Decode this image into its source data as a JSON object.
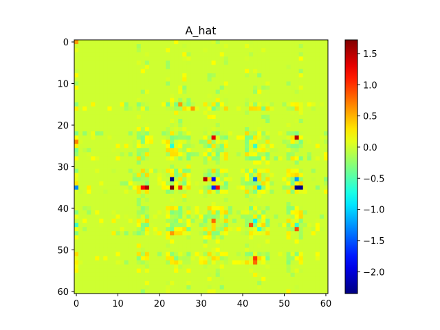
{
  "chart_data": {
    "type": "heatmap",
    "title": "A_hat",
    "xlabel": "",
    "ylabel": "",
    "shape": [
      61,
      61
    ],
    "xlim": [
      -0.5,
      60.5
    ],
    "ylim": [
      60.5,
      -0.5
    ],
    "xticks": [
      0,
      10,
      20,
      30,
      40,
      50,
      60
    ],
    "yticks": [
      0,
      10,
      20,
      30,
      40,
      50,
      60
    ],
    "colormap": "jet",
    "vmin": -2.35,
    "vmax": 1.72,
    "colorbar_ticks": [
      1.5,
      1.0,
      0.5,
      0.0,
      -0.5,
      -1.0,
      -1.5,
      -2.0
    ],
    "colorbar_tick_labels": [
      "1.5",
      "1.0",
      "0.5",
      "0.0",
      "−0.5",
      "−1.0",
      "−1.5",
      "−2.0"
    ],
    "background_value": 0.0,
    "active_rows": [
      15,
      16,
      22,
      23,
      24,
      25,
      26,
      27,
      28,
      31,
      32,
      33,
      34,
      35,
      36,
      40,
      41,
      42,
      43,
      44,
      45,
      46,
      51,
      52,
      53
    ],
    "active_cols": [
      0,
      15,
      16,
      17,
      22,
      23,
      24,
      25,
      26,
      27,
      31,
      32,
      33,
      34,
      35,
      36,
      41,
      42,
      43,
      44,
      45,
      46,
      51,
      52,
      53,
      54
    ],
    "noise_amplitude": 0.35,
    "notable_cells": [
      {
        "row": 23,
        "col": 33,
        "value": 1.3
      },
      {
        "row": 23,
        "col": 53,
        "value": 1.5
      },
      {
        "row": 33,
        "col": 23,
        "value": -2.3
      },
      {
        "row": 33,
        "col": 31,
        "value": 1.5
      },
      {
        "row": 33,
        "col": 33,
        "value": -1.8
      },
      {
        "row": 33,
        "col": 43,
        "value": -1.4
      },
      {
        "row": 33,
        "col": 53,
        "value": -1.2
      },
      {
        "row": 35,
        "col": 17,
        "value": 1.5
      },
      {
        "row": 35,
        "col": 16,
        "value": 1.2
      },
      {
        "row": 35,
        "col": 23,
        "value": 1.7
      },
      {
        "row": 35,
        "col": 33,
        "value": -1.7
      },
      {
        "row": 35,
        "col": 34,
        "value": 1.2
      },
      {
        "row": 35,
        "col": 53,
        "value": -2.3
      },
      {
        "row": 35,
        "col": 54,
        "value": -2.3
      },
      {
        "row": 35,
        "col": 0,
        "value": -1.3
      },
      {
        "row": 35,
        "col": 44,
        "value": -1.0
      },
      {
        "row": 35,
        "col": 25,
        "value": 1.0
      },
      {
        "row": 24,
        "col": 0,
        "value": 0.7
      },
      {
        "row": 16,
        "col": 28,
        "value": 0.6
      },
      {
        "row": 15,
        "col": 25,
        "value": 0.6
      },
      {
        "row": 25,
        "col": 23,
        "value": -0.7
      },
      {
        "row": 25,
        "col": 43,
        "value": -0.6
      },
      {
        "row": 43,
        "col": 43,
        "value": -0.8
      },
      {
        "row": 44,
        "col": 42,
        "value": 0.9
      },
      {
        "row": 45,
        "col": 44,
        "value": -0.6
      },
      {
        "row": 45,
        "col": 53,
        "value": 0.9
      },
      {
        "row": 44,
        "col": 53,
        "value": -0.6
      },
      {
        "row": 52,
        "col": 43,
        "value": 1.0
      },
      {
        "row": 53,
        "col": 43,
        "value": 0.8
      },
      {
        "row": 44,
        "col": 0,
        "value": -0.6
      },
      {
        "row": 0,
        "col": 0,
        "value": 0.6
      },
      {
        "row": 46,
        "col": 23,
        "value": 0.6
      },
      {
        "row": 43,
        "col": 33,
        "value": 0.8
      }
    ]
  }
}
